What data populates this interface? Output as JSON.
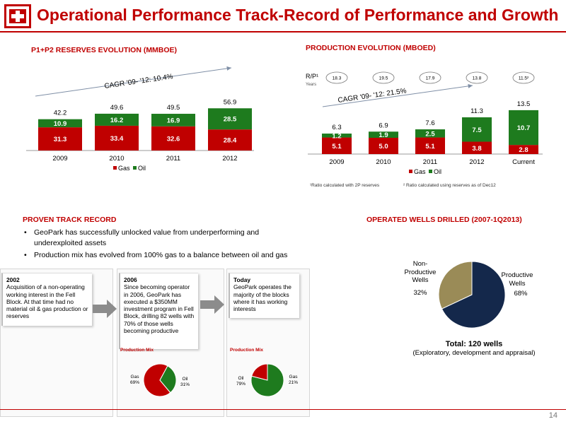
{
  "header": {
    "title": "Operational Performance  Track-Record of Performance and Growth"
  },
  "colors": {
    "gas": "#c00000",
    "oil": "#1e7b1e",
    "productive": "#14284b",
    "non_productive": "#9a8b57",
    "brand_red": "#c00000"
  },
  "reserves": {
    "section_title": "P1+P2 RESERVES EVOLUTION (MMBOE)",
    "cagr": "CAGR '09- '12: 10.4%",
    "legend_gas": "Gas",
    "legend_oil": "Oil"
  },
  "production": {
    "section_title": "PRODUCTION EVOLUTION (MBOED)",
    "cagr": "CAGR '09- '12: 21.5%",
    "rp_label": "R/P¹",
    "rp_sublabel": "Years",
    "rp_values": [
      "18.3",
      "19.5",
      "17.9",
      "13.8",
      "11.5²"
    ],
    "legend_gas": "Gas",
    "legend_oil": "Oil",
    "footnote1": "¹Ratio calculated with 2P reserves",
    "footnote2": "² Ratio calculated using reserves as of Dec12"
  },
  "track_record": {
    "section_title": "PROVEN TRACK RECORD",
    "bullets": [
      "GeoPark has successfully unlocked value from underperforming and underexploited assets",
      "Production mix has evolved from 100% gas to a balance between oil and gas"
    ],
    "boxes": [
      {
        "year": "2002",
        "text": "Acquisition of a non-operating working interest in the Fell Block. At that time had no material oil & gas production or reserves"
      },
      {
        "year": "2006",
        "text": "Since becoming operator in 2006, GeoPark has executed a $350MM investment program in Fell Block, drilling 82 wells with 70% of those wells becoming productive"
      },
      {
        "year": "Today",
        "text": "GeoPark operates the majority of the blocks where it has working interests"
      }
    ],
    "mix_label": "Production Mix",
    "mix_2006": {
      "gas_label": "Gas",
      "gas_pct": "69%",
      "oil_label": "Oil",
      "oil_pct": "31%"
    },
    "mix_today": {
      "oil_label": "Oil",
      "oil_pct": "79%",
      "gas_label": "Gas",
      "gas_pct": "21%"
    }
  },
  "wells": {
    "section_title": "OPERATED WELLS DRILLED (2007-1Q2013)",
    "non_productive_label": "Non-Productive Wells",
    "non_productive_pct": "32%",
    "productive_label": "Productive Wells",
    "productive_pct": "68%",
    "total": "Total: 120 wells",
    "subtitle": "(Exploratory, development and appraisal)"
  },
  "page_number": "14",
  "chart_data": [
    {
      "type": "bar",
      "stacked": true,
      "categories": [
        "2009",
        "2010",
        "2011",
        "2012"
      ],
      "series": [
        {
          "name": "Gas",
          "values": [
            31.3,
            33.4,
            32.6,
            28.4
          ],
          "labels": [
            "31.3",
            "33.4",
            "32.6",
            "28.4"
          ]
        },
        {
          "name": "Oil",
          "values": [
            10.9,
            16.2,
            16.9,
            28.5
          ],
          "labels": [
            "10.9",
            "16.2",
            "16.9",
            "28.5"
          ]
        }
      ],
      "totals": [
        "42.2",
        "49.6",
        "49.5",
        "56.9"
      ],
      "legend": "bottom",
      "grid": false
    },
    {
      "type": "bar",
      "stacked": true,
      "categories": [
        "2009",
        "2010",
        "2011",
        "2012",
        "Current"
      ],
      "series": [
        {
          "name": "Gas",
          "values": [
            5.1,
            5.0,
            5.1,
            3.8,
            2.8
          ],
          "labels": [
            "5.1",
            "5.0",
            "5.1",
            "3.8",
            "2.8"
          ]
        },
        {
          "name": "Oil",
          "values": [
            1.2,
            1.9,
            2.5,
            7.5,
            10.7
          ],
          "labels": [
            "1.2",
            "1.9",
            "2.5",
            "7.5",
            "10.7"
          ]
        }
      ],
      "totals": [
        "6.3",
        "6.9",
        "7.6",
        "11.3",
        "13.5"
      ],
      "legend": "bottom",
      "grid": false
    },
    {
      "type": "pie",
      "labels": [
        "Gas",
        "Oil"
      ],
      "values": [
        69,
        31
      ]
    },
    {
      "type": "pie",
      "labels": [
        "Oil",
        "Gas"
      ],
      "values": [
        79,
        21
      ]
    },
    {
      "type": "pie",
      "labels": [
        "Productive Wells",
        "Non-Productive Wells"
      ],
      "values": [
        68,
        32
      ]
    }
  ]
}
